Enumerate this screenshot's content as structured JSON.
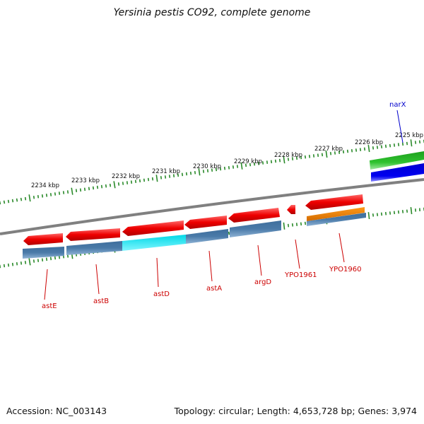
{
  "title": "Yersinia pestis CO92, complete genome",
  "accession_text": "Accession: NC_003143",
  "stats_text": "Topology: circular; Length: 4,653,728 bp; Genes: 3,974",
  "scale_labels": [
    "2234 kbp",
    "2233 kbp",
    "2232 kbp",
    "2231 kbp",
    "2230 kbp",
    "2229 kbp",
    "2228 kbp",
    "2227 kbp",
    "2226 kbp",
    "2225 kbp"
  ],
  "gene_labels": [
    "astE",
    "astB",
    "astD",
    "astA",
    "argD",
    "YPO1961",
    "YPO1960",
    "narX"
  ],
  "colors": {
    "backbone": "#808080",
    "gene_arrow": "#ee0000",
    "track_blue": "#4a7aa8",
    "track_cyan": "#00e6f0",
    "track_orange": "#f08a00",
    "track_green": "#2ec22e",
    "track_darkblue": "#0000e0",
    "scale_ticks": "#2a8a2a",
    "label_red": "#cc0000",
    "label_blue": "#0000cc"
  }
}
